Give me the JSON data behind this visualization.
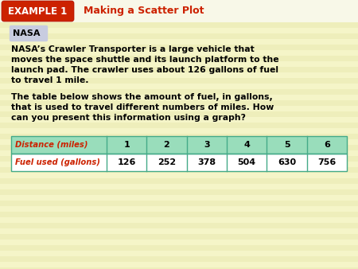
{
  "background_color": "#f5f5c8",
  "header_bg": "#cc2200",
  "header_text": "EXAMPLE 1",
  "header_subtext": "Making a Scatter Plot",
  "header_subtext_color": "#cc2200",
  "nasa_label": "NASA",
  "nasa_label_bg": "#c8cce0",
  "body_lines_p1": [
    "NASA’s Crawler Transporter is a large vehicle that",
    "moves the space shuttle and its launch platform to the",
    "launch pad. The crawler uses about 126 gallons of fuel",
    "to travel 1 mile."
  ],
  "body_lines_p2": [
    "The table below shows the amount of fuel, in gallons,",
    "that is used to travel different numbers of miles. How",
    "can you present this information using a graph?"
  ],
  "table_header_color": "#99ddbb",
  "table_border_color": "#44aa88",
  "table_row1_label": "Distance (miles)",
  "table_row2_label": "Fuel used (gallons)",
  "table_col_values": [
    "1",
    "2",
    "3",
    "4",
    "5",
    "6"
  ],
  "table_fuel_values": [
    "126",
    "252",
    "378",
    "504",
    "630",
    "756"
  ],
  "label_text_color": "#cc2200",
  "stripe_color": "#f0f0e0"
}
